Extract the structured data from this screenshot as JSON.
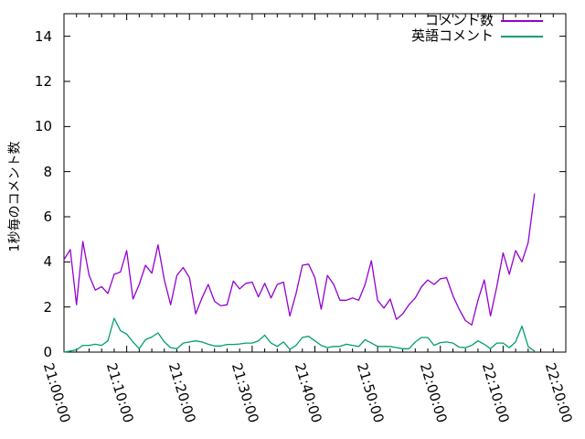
{
  "chart_data": {
    "type": "line",
    "title": "",
    "ylabel": "1秒毎のコメント数",
    "background": "#ffffff",
    "border_color": "#000000",
    "grid": false,
    "legend_position": "top-right",
    "x_axis": {
      "range_minutes": [
        0,
        80
      ],
      "major_tick_interval_minutes": 10,
      "minor_tick_interval_minutes": 2,
      "major_tick_labels": [
        "21:00:00",
        "21:10:00",
        "21:20:00",
        "21:30:00",
        "21:40:00",
        "21:50:00",
        "22:00:00",
        "22:10:00",
        "22:20:00"
      ]
    },
    "y_axis": {
      "range": [
        0,
        15
      ],
      "tick_values": [
        0,
        2,
        4,
        6,
        8,
        10,
        12,
        14
      ],
      "tick_labels": [
        "0",
        "2",
        "4",
        "6",
        "8",
        "10",
        "12",
        "14"
      ]
    },
    "sample_interval_minutes": 1,
    "series": [
      {
        "name": "コメント数",
        "color": "#9400d3",
        "values": [
          4.1,
          4.55,
          2.1,
          4.9,
          3.4,
          2.75,
          2.9,
          2.6,
          3.45,
          3.55,
          4.5,
          2.35,
          3.0,
          3.85,
          3.5,
          4.75,
          3.2,
          2.1,
          3.4,
          3.75,
          3.3,
          1.7,
          2.4,
          3.0,
          2.25,
          2.05,
          2.1,
          3.15,
          2.8,
          3.05,
          3.1,
          2.45,
          3.05,
          2.4,
          3.0,
          3.1,
          1.6,
          2.6,
          3.85,
          3.9,
          3.3,
          1.9,
          3.4,
          3.0,
          2.3,
          2.3,
          2.4,
          2.3,
          3.0,
          4.05,
          2.3,
          1.95,
          2.35,
          1.45,
          1.7,
          2.1,
          2.4,
          2.9,
          3.2,
          3.0,
          3.25,
          3.3,
          2.5,
          1.9,
          1.4,
          1.2,
          2.3,
          3.2,
          1.6,
          2.9,
          4.4,
          3.45,
          4.5,
          4.0,
          4.85,
          7.0
        ]
      },
      {
        "name": "英語コメント",
        "color": "#009e73",
        "values": [
          0.0,
          0.05,
          0.1,
          0.3,
          0.3,
          0.35,
          0.3,
          0.5,
          1.5,
          0.95,
          0.8,
          0.45,
          0.15,
          0.55,
          0.67,
          0.85,
          0.45,
          0.2,
          0.15,
          0.4,
          0.45,
          0.5,
          0.45,
          0.35,
          0.27,
          0.27,
          0.34,
          0.34,
          0.36,
          0.4,
          0.4,
          0.5,
          0.75,
          0.4,
          0.25,
          0.45,
          0.12,
          0.3,
          0.65,
          0.7,
          0.5,
          0.3,
          0.2,
          0.25,
          0.25,
          0.35,
          0.3,
          0.25,
          0.55,
          0.4,
          0.25,
          0.25,
          0.25,
          0.2,
          0.15,
          0.15,
          0.45,
          0.65,
          0.65,
          0.3,
          0.42,
          0.45,
          0.4,
          0.22,
          0.2,
          0.3,
          0.5,
          0.35,
          0.15,
          0.4,
          0.4,
          0.2,
          0.45,
          1.15,
          0.25,
          0.05
        ]
      }
    ]
  }
}
